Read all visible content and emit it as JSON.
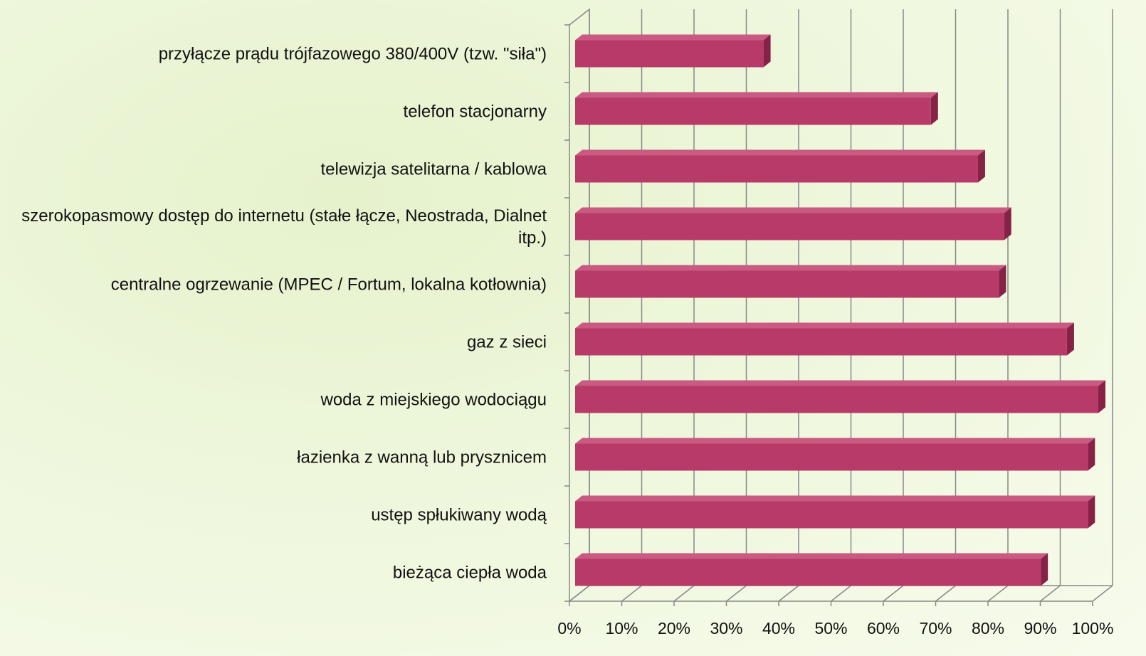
{
  "chart_data": {
    "type": "bar3d_horizontal",
    "categories": [
      "przyłącze prądu trójfazowego 380/400V (tzw. \"siła\")",
      "telefon stacjonarny",
      "telewizja satelitarna / kablowa",
      "szerokopasmowy dostęp do internetu (stałe łącze, Neostrada, Dialnet itp.)",
      "centralne ogrzewanie (MPEC / Fortum, lokalna kotłownia)",
      "gaz z sieci",
      "woda z miejskiego wodociągu",
      "łazienka z wanną lub prysznicem",
      "ustęp spłukiwany wodą",
      "bieżąca ciepła woda"
    ],
    "values": [
      36,
      68,
      77,
      82,
      81,
      94,
      100,
      98,
      98,
      89
    ],
    "color": "#b83a68",
    "xlim": [
      0,
      100
    ],
    "xticks": [
      {
        "value": 0,
        "label": "0%"
      },
      {
        "value": 10,
        "label": "10%"
      },
      {
        "value": 20,
        "label": "20%"
      },
      {
        "value": 30,
        "label": "30%"
      },
      {
        "value": 40,
        "label": "40%"
      },
      {
        "value": 50,
        "label": "50%"
      },
      {
        "value": 60,
        "label": "60%"
      },
      {
        "value": 70,
        "label": "70%"
      },
      {
        "value": 80,
        "label": "80%"
      },
      {
        "value": 90,
        "label": "90%"
      },
      {
        "value": 100,
        "label": "100%"
      }
    ],
    "grid": true
  }
}
